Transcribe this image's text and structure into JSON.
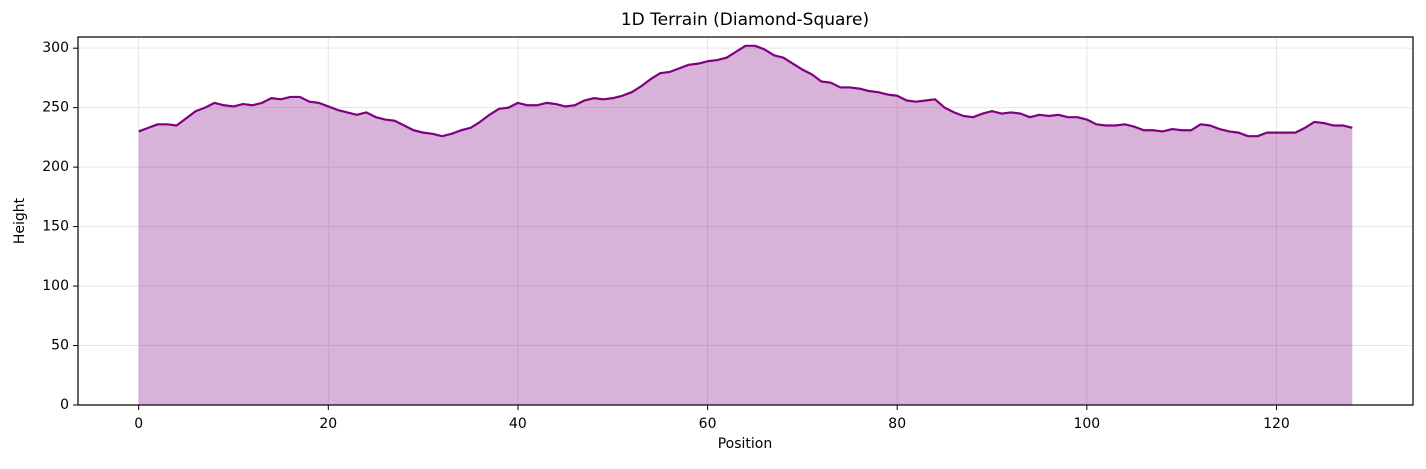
{
  "chart_data": {
    "type": "area",
    "title": "1D Terrain (Diamond-Square)",
    "x_label": "Position",
    "y_label": "Height",
    "x": [
      0,
      1,
      2,
      3,
      4,
      5,
      6,
      7,
      8,
      9,
      10,
      11,
      12,
      13,
      14,
      15,
      16,
      17,
      18,
      19,
      20,
      21,
      22,
      23,
      24,
      25,
      26,
      27,
      28,
      29,
      30,
      31,
      32,
      33,
      34,
      35,
      36,
      37,
      38,
      39,
      40,
      41,
      42,
      43,
      44,
      45,
      46,
      47,
      48,
      49,
      50,
      51,
      52,
      53,
      54,
      55,
      56,
      57,
      58,
      59,
      60,
      61,
      62,
      63,
      64,
      65,
      66,
      67,
      68,
      69,
      70,
      71,
      72,
      73,
      74,
      75,
      76,
      77,
      78,
      79,
      80,
      81,
      82,
      83,
      84,
      85,
      86,
      87,
      88,
      89,
      90,
      91,
      92,
      93,
      94,
      95,
      96,
      97,
      98,
      99,
      100,
      101,
      102,
      103,
      104,
      105,
      106,
      107,
      108,
      109,
      110,
      111,
      112,
      113,
      114,
      115,
      116,
      117,
      118,
      119,
      120,
      121,
      122,
      123,
      124,
      125,
      126,
      127,
      128
    ],
    "series": [
      {
        "color": "#800080",
        "fill_opacity": 0.3,
        "values": [
          230,
          233,
          236,
          236,
          235,
          241,
          247,
          250,
          254,
          252,
          251,
          253,
          252,
          254,
          258,
          257,
          259,
          259,
          255,
          254,
          251,
          248,
          246,
          244,
          246,
          242,
          240,
          239,
          235,
          231,
          229,
          228,
          226,
          228,
          231,
          233,
          238,
          244,
          249,
          250,
          254,
          252,
          252,
          254,
          253,
          251,
          252,
          256,
          258,
          257,
          258,
          260,
          263,
          268,
          274,
          279,
          280,
          283,
          286,
          287,
          289,
          290,
          292,
          297,
          302,
          302,
          299,
          294,
          292,
          287,
          282,
          278,
          272,
          271,
          267,
          267,
          266,
          264,
          263,
          261,
          260,
          256,
          255,
          256,
          257,
          250,
          246,
          243,
          242,
          245,
          247,
          245,
          246,
          245,
          242,
          244,
          243,
          244,
          242,
          242,
          240,
          236,
          235,
          235,
          236,
          234,
          231,
          231,
          230,
          232,
          231,
          231,
          236,
          235,
          232,
          230,
          229,
          226,
          226,
          229,
          229,
          229,
          229,
          233,
          238,
          237,
          235,
          235,
          233
        ]
      }
    ],
    "xlim": [
      -6.4,
      134.4
    ],
    "ylim": [
      0,
      309.4
    ],
    "xticks": [
      0,
      20,
      40,
      60,
      80,
      100,
      120
    ],
    "yticks": [
      0,
      50,
      100,
      150,
      200,
      250,
      300
    ],
    "grid": true
  }
}
